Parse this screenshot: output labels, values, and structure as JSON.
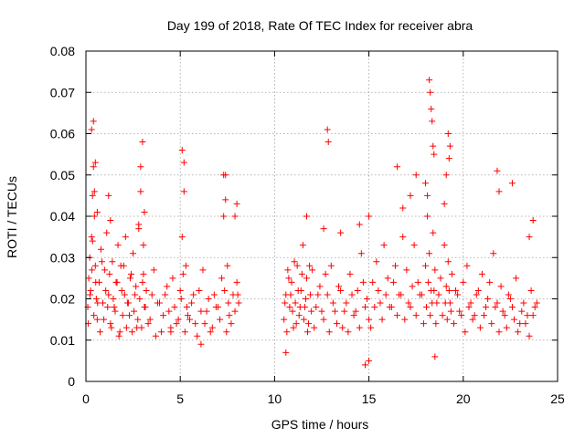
{
  "chart_data": {
    "type": "scatter",
    "title": "Day 199 of 2018, Rate Of TEC Index for receiver abra",
    "xlabel": "GPS time / hours",
    "ylabel": "ROTI / TECUs",
    "xlim": [
      0,
      25
    ],
    "ylim": [
      0,
      0.08
    ],
    "xticks": [
      0,
      5,
      10,
      15,
      20,
      25
    ],
    "yticks": [
      0,
      0.01,
      0.02,
      0.03,
      0.04,
      0.05,
      0.06,
      0.07,
      0.08
    ],
    "xtick_labels": [
      "0",
      "5",
      "10",
      "15",
      "20",
      "25"
    ],
    "ytick_labels": [
      "0",
      "0.01",
      "0.02",
      "0.03",
      "0.04",
      "0.05",
      "0.06",
      "0.07",
      "0.08"
    ],
    "grid": true,
    "marker": "plus",
    "color": "#ff0000",
    "series": [
      {
        "x": [
          0.1,
          0.15,
          0.2,
          0.25,
          0.3,
          0.35,
          0.4,
          0.45,
          0.5,
          0.55,
          0.6,
          0.7,
          0.8,
          0.9,
          1.0,
          1.1,
          1.2,
          1.3,
          1.4,
          1.5,
          1.6,
          1.7,
          1.8,
          1.9,
          2.0,
          2.1,
          2.2,
          2.3,
          2.4,
          2.5,
          2.6,
          2.7,
          2.8,
          2.9,
          3.0,
          3.1,
          3.2,
          3.4,
          3.6,
          3.8,
          4.0,
          4.2,
          4.4,
          4.6,
          4.8,
          5.0,
          5.1,
          5.2,
          5.3,
          5.4,
          5.6,
          5.8,
          6.0,
          6.2,
          6.4,
          6.6,
          6.8,
          7.0,
          7.2,
          7.3,
          7.4,
          7.5,
          7.6,
          7.8,
          8.0,
          8.1,
          0.12,
          0.22,
          0.32,
          0.42,
          0.52,
          0.62,
          0.75,
          0.85,
          0.95,
          1.05,
          1.15,
          1.25,
          1.35,
          1.45,
          1.55,
          1.65,
          1.75,
          1.85,
          1.95,
          2.05,
          2.15,
          2.25,
          2.35,
          2.45,
          2.55,
          2.65,
          2.75,
          2.85,
          2.95,
          3.05,
          3.15,
          3.3,
          3.5,
          3.7,
          3.9,
          4.1,
          4.3,
          4.5,
          4.7,
          4.9,
          5.05,
          5.15,
          5.25,
          5.35,
          5.5,
          5.7,
          5.9,
          6.1,
          6.3,
          6.5,
          6.7,
          6.9,
          7.1,
          7.35,
          7.45,
          7.55,
          7.7,
          7.9,
          8.05,
          0.3,
          0.4,
          0.5,
          0.6,
          2.9,
          3.0,
          3.1,
          5.1,
          5.2,
          7.3,
          7.4,
          0.35,
          0.45,
          1.2,
          1.3,
          2.8,
          3.05,
          4.5,
          6.1,
          7.9,
          8.0
        ],
        "y": [
          0.018,
          0.025,
          0.03,
          0.022,
          0.035,
          0.045,
          0.052,
          0.04,
          0.028,
          0.02,
          0.015,
          0.024,
          0.032,
          0.019,
          0.027,
          0.036,
          0.021,
          0.014,
          0.029,
          0.018,
          0.024,
          0.033,
          0.012,
          0.022,
          0.028,
          0.035,
          0.019,
          0.016,
          0.026,
          0.031,
          0.021,
          0.013,
          0.038,
          0.046,
          0.024,
          0.018,
          0.022,
          0.015,
          0.027,
          0.019,
          0.012,
          0.021,
          0.017,
          0.025,
          0.014,
          0.022,
          0.035,
          0.046,
          0.028,
          0.016,
          0.019,
          0.014,
          0.022,
          0.027,
          0.017,
          0.012,
          0.021,
          0.018,
          0.025,
          0.04,
          0.05,
          0.028,
          0.016,
          0.021,
          0.024,
          0.019,
          0.014,
          0.021,
          0.027,
          0.016,
          0.024,
          0.019,
          0.012,
          0.029,
          0.015,
          0.022,
          0.018,
          0.026,
          0.013,
          0.02,
          0.017,
          0.024,
          0.011,
          0.028,
          0.016,
          0.021,
          0.013,
          0.019,
          0.025,
          0.012,
          0.017,
          0.023,
          0.015,
          0.02,
          0.013,
          0.026,
          0.018,
          0.014,
          0.021,
          0.011,
          0.019,
          0.016,
          0.023,
          0.013,
          0.018,
          0.015,
          0.02,
          0.026,
          0.012,
          0.018,
          0.015,
          0.021,
          0.011,
          0.017,
          0.014,
          0.02,
          0.013,
          0.018,
          0.015,
          0.022,
          0.012,
          0.019,
          0.014,
          0.017,
          0.021,
          0.061,
          0.063,
          0.053,
          0.041,
          0.052,
          0.058,
          0.041,
          0.056,
          0.053,
          0.05,
          0.044,
          0.034,
          0.046,
          0.045,
          0.039,
          0.037,
          0.033,
          0.012,
          0.009,
          0.04,
          0.043
        ]
      },
      {
        "x": [
          10.5,
          10.6,
          10.7,
          10.8,
          10.9,
          11.0,
          11.1,
          11.2,
          11.3,
          11.4,
          11.5,
          11.6,
          11.7,
          11.8,
          11.9,
          12.0,
          12.2,
          12.4,
          12.6,
          12.8,
          13.0,
          13.2,
          13.4,
          13.6,
          13.8,
          14.0,
          14.2,
          14.4,
          14.6,
          14.8,
          15.0,
          15.2,
          15.4,
          15.6,
          15.8,
          16.0,
          16.2,
          16.4,
          16.6,
          16.8,
          17.0,
          17.2,
          17.4,
          17.6,
          17.8,
          18.0,
          18.1,
          18.2,
          18.3,
          18.4,
          18.5,
          18.6,
          18.8,
          19.0,
          19.1,
          19.2,
          19.3,
          19.4,
          19.6,
          19.8,
          20.0,
          20.2,
          20.4,
          20.6,
          20.8,
          21.0,
          21.2,
          21.4,
          21.6,
          21.8,
          22.0,
          22.2,
          22.4,
          22.6,
          22.8,
          23.0,
          23.2,
          23.4,
          23.6,
          23.8,
          10.55,
          10.65,
          10.75,
          10.85,
          10.95,
          11.05,
          11.15,
          11.25,
          11.35,
          11.45,
          11.55,
          11.65,
          11.75,
          11.85,
          11.95,
          12.1,
          12.3,
          12.5,
          12.7,
          12.9,
          13.1,
          13.3,
          13.5,
          13.7,
          13.9,
          14.1,
          14.3,
          14.5,
          14.7,
          14.9,
          15.1,
          15.3,
          15.5,
          15.7,
          15.9,
          16.1,
          16.3,
          16.5,
          16.7,
          16.9,
          17.1,
          17.3,
          17.5,
          17.7,
          17.9,
          18.05,
          18.15,
          18.25,
          18.35,
          18.45,
          18.55,
          18.7,
          18.9,
          19.05,
          19.15,
          19.25,
          19.35,
          19.5,
          19.7,
          19.9,
          20.1,
          20.3,
          20.5,
          20.7,
          20.9,
          21.1,
          21.3,
          21.5,
          21.7,
          21.9,
          22.1,
          22.3,
          22.5,
          22.7,
          22.9,
          23.1,
          23.3,
          23.5,
          23.7,
          23.9,
          12.8,
          12.85,
          18.2,
          18.25,
          18.3,
          18.35,
          18.4,
          18.45,
          19.2,
          19.3,
          19.25,
          16.5,
          17.5,
          21.8,
          22.6,
          21.9,
          18.0,
          18.1,
          19.0,
          19.1,
          17.2,
          16.8,
          14.5,
          15.0,
          12.6,
          13.5,
          11.7,
          23.5,
          23.7,
          14.8,
          15.0,
          18.5,
          10.6
        ],
        "y": [
          0.015,
          0.021,
          0.027,
          0.018,
          0.024,
          0.013,
          0.019,
          0.028,
          0.016,
          0.022,
          0.033,
          0.018,
          0.025,
          0.014,
          0.021,
          0.027,
          0.018,
          0.023,
          0.015,
          0.021,
          0.028,
          0.017,
          0.023,
          0.013,
          0.019,
          0.026,
          0.016,
          0.022,
          0.031,
          0.018,
          0.015,
          0.024,
          0.029,
          0.019,
          0.033,
          0.025,
          0.018,
          0.028,
          0.021,
          0.035,
          0.027,
          0.018,
          0.033,
          0.024,
          0.021,
          0.028,
          0.04,
          0.031,
          0.022,
          0.036,
          0.027,
          0.019,
          0.025,
          0.033,
          0.023,
          0.029,
          0.019,
          0.026,
          0.022,
          0.017,
          0.024,
          0.028,
          0.019,
          0.016,
          0.022,
          0.026,
          0.018,
          0.024,
          0.031,
          0.019,
          0.023,
          0.016,
          0.021,
          0.018,
          0.025,
          0.014,
          0.019,
          0.016,
          0.022,
          0.018,
          0.019,
          0.012,
          0.025,
          0.021,
          0.017,
          0.029,
          0.014,
          0.022,
          0.018,
          0.026,
          0.015,
          0.02,
          0.012,
          0.028,
          0.017,
          0.013,
          0.021,
          0.017,
          0.026,
          0.012,
          0.019,
          0.014,
          0.022,
          0.017,
          0.012,
          0.021,
          0.017,
          0.013,
          0.024,
          0.02,
          0.013,
          0.018,
          0.022,
          0.015,
          0.021,
          0.018,
          0.024,
          0.016,
          0.021,
          0.015,
          0.019,
          0.023,
          0.016,
          0.021,
          0.014,
          0.018,
          0.024,
          0.016,
          0.019,
          0.022,
          0.014,
          0.021,
          0.016,
          0.019,
          0.015,
          0.022,
          0.017,
          0.014,
          0.021,
          0.016,
          0.012,
          0.018,
          0.015,
          0.021,
          0.013,
          0.016,
          0.02,
          0.014,
          0.018,
          0.012,
          0.017,
          0.013,
          0.02,
          0.015,
          0.012,
          0.017,
          0.014,
          0.011,
          0.016,
          0.019,
          0.061,
          0.058,
          0.073,
          0.07,
          0.066,
          0.063,
          0.057,
          0.055,
          0.06,
          0.057,
          0.054,
          0.052,
          0.05,
          0.051,
          0.048,
          0.046,
          0.048,
          0.045,
          0.043,
          0.05,
          0.045,
          0.042,
          0.038,
          0.04,
          0.037,
          0.036,
          0.04,
          0.035,
          0.039,
          0.004,
          0.005,
          0.006,
          0.007
        ]
      }
    ]
  }
}
